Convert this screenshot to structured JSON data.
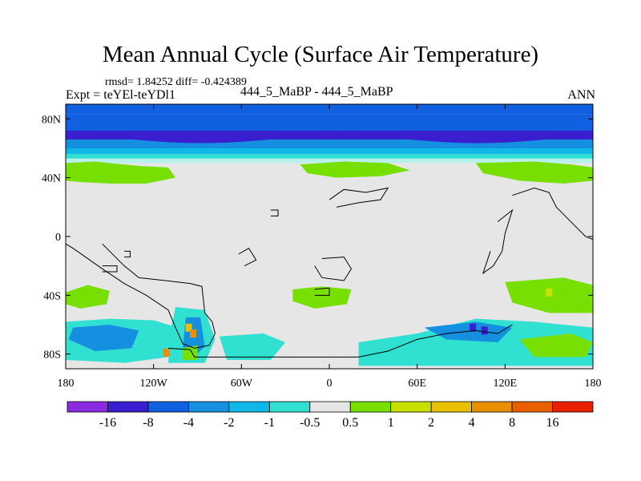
{
  "chart_data": {
    "type": "heatmap",
    "title": "Mean Annual Cycle (Surface Air Temperature)",
    "stats": "rmsd= 1.84252  diff= -0.424389",
    "expt": "Expt = teYEl-teYDl1",
    "case": "444_5_MaBP - 444_5_MaBP",
    "season": "ANN",
    "xlim": [
      -180,
      180
    ],
    "ylim": [
      -90,
      90
    ],
    "x_ticks": [
      {
        "value": -180,
        "label": "180"
      },
      {
        "value": -120,
        "label": "120W"
      },
      {
        "value": -60,
        "label": "60W"
      },
      {
        "value": 0,
        "label": "0"
      },
      {
        "value": 60,
        "label": "60E"
      },
      {
        "value": 120,
        "label": "120E"
      },
      {
        "value": 180,
        "label": "180"
      }
    ],
    "y_ticks": [
      {
        "value": 80,
        "label": "80N"
      },
      {
        "value": 40,
        "label": "40N"
      },
      {
        "value": 0,
        "label": "0"
      },
      {
        "value": -40,
        "label": "40S"
      },
      {
        "value": -80,
        "label": "80S"
      }
    ],
    "colorbar": {
      "labels": [
        "-16",
        "-8",
        "-4",
        "-2",
        "-1",
        "-0.5",
        "0.5",
        "1",
        "2",
        "4",
        "8",
        "16"
      ],
      "colors": [
        "#8a2be2",
        "#3a1fd0",
        "#1060e0",
        "#1590e0",
        "#10b8e8",
        "#30e0d0",
        "#e6e6e6",
        "#78e000",
        "#c8e000",
        "#e8c000",
        "#e89000",
        "#e86000",
        "#e82000"
      ]
    },
    "lat_bands": [
      {
        "lat": [
          90,
          83
        ],
        "color": "#1060e0"
      },
      {
        "lat": [
          83,
          72
        ],
        "color": "#1060e0"
      },
      {
        "lat": [
          72,
          66
        ],
        "color": "#3a1fd0"
      },
      {
        "lat": [
          66,
          60
        ],
        "color": "#1590e0"
      },
      {
        "lat": [
          60,
          56
        ],
        "color": "#10b8e8"
      },
      {
        "lat": [
          56,
          53
        ],
        "color": "#30e0d0"
      },
      {
        "lat": [
          53,
          50
        ],
        "color": "#b8f0ee"
      }
    ],
    "regions": [
      {
        "name": "nh-midlat-west",
        "color": "#78e000",
        "pts": [
          [
            -180,
            50
          ],
          [
            -160,
            51
          ],
          [
            -130,
            48
          ],
          [
            -110,
            47
          ],
          [
            -105,
            40
          ],
          [
            -125,
            36
          ],
          [
            -150,
            36
          ],
          [
            -170,
            37
          ],
          [
            -180,
            38
          ]
        ]
      },
      {
        "name": "nh-midlat-center",
        "color": "#78e000",
        "pts": [
          [
            -20,
            49
          ],
          [
            10,
            51
          ],
          [
            40,
            50
          ],
          [
            55,
            45
          ],
          [
            35,
            41
          ],
          [
            5,
            40
          ],
          [
            -15,
            43
          ]
        ]
      },
      {
        "name": "nh-midlat-east",
        "color": "#78e000",
        "pts": [
          [
            100,
            50
          ],
          [
            140,
            51
          ],
          [
            165,
            49
          ],
          [
            180,
            47
          ],
          [
            180,
            38
          ],
          [
            160,
            36
          ],
          [
            130,
            38
          ],
          [
            105,
            43
          ]
        ]
      },
      {
        "name": "sh-pacific-west",
        "color": "#78e000",
        "pts": [
          [
            -180,
            -38
          ],
          [
            -165,
            -33
          ],
          [
            -150,
            -37
          ],
          [
            -152,
            -46
          ],
          [
            -170,
            -49
          ],
          [
            -180,
            -46
          ]
        ]
      },
      {
        "name": "sh-atlantic",
        "color": "#78e000",
        "pts": [
          [
            -25,
            -36
          ],
          [
            -5,
            -34
          ],
          [
            15,
            -36
          ],
          [
            12,
            -46
          ],
          [
            -10,
            -49
          ],
          [
            -25,
            -44
          ]
        ]
      },
      {
        "name": "sh-indian-east",
        "color": "#78e000",
        "pts": [
          [
            120,
            -31
          ],
          [
            160,
            -28
          ],
          [
            180,
            -33
          ],
          [
            180,
            -52
          ],
          [
            150,
            -52
          ],
          [
            125,
            -45
          ]
        ]
      },
      {
        "name": "sh-south-west",
        "color": "#30e0d0",
        "pts": [
          [
            -180,
            -58
          ],
          [
            -150,
            -56
          ],
          [
            -120,
            -57
          ],
          [
            -100,
            -63
          ],
          [
            -110,
            -82
          ],
          [
            -140,
            -86
          ],
          [
            -180,
            -84
          ]
        ]
      },
      {
        "name": "sh-west-blue",
        "color": "#1590e0",
        "pts": [
          [
            -175,
            -62
          ],
          [
            -150,
            -60
          ],
          [
            -130,
            -64
          ],
          [
            -135,
            -76
          ],
          [
            -160,
            -78
          ],
          [
            -178,
            -70
          ]
        ]
      },
      {
        "name": "sh-andes-cyan",
        "color": "#30e0d0",
        "pts": [
          [
            -105,
            -48
          ],
          [
            -85,
            -50
          ],
          [
            -78,
            -70
          ],
          [
            -85,
            -86
          ],
          [
            -110,
            -86
          ],
          [
            -108,
            -62
          ]
        ]
      },
      {
        "name": "sh-andes-blue",
        "color": "#1590e0",
        "pts": [
          [
            -98,
            -55
          ],
          [
            -88,
            -55
          ],
          [
            -85,
            -75
          ],
          [
            -93,
            -82
          ],
          [
            -100,
            -75
          ]
        ]
      },
      {
        "name": "sh-atl-south",
        "color": "#30e0d0",
        "pts": [
          [
            -75,
            -68
          ],
          [
            -45,
            -66
          ],
          [
            -30,
            -72
          ],
          [
            -40,
            -84
          ],
          [
            -70,
            -84
          ]
        ]
      },
      {
        "name": "sh-east-cyan",
        "color": "#30e0d0",
        "pts": [
          [
            20,
            -72
          ],
          [
            60,
            -66
          ],
          [
            100,
            -56
          ],
          [
            140,
            -58
          ],
          [
            180,
            -62
          ],
          [
            180,
            -88
          ],
          [
            20,
            -88
          ]
        ]
      },
      {
        "name": "sh-east-blue",
        "color": "#1590e0",
        "pts": [
          [
            65,
            -62
          ],
          [
            100,
            -58
          ],
          [
            125,
            -62
          ],
          [
            115,
            -72
          ],
          [
            80,
            -70
          ]
        ]
      },
      {
        "name": "sh-east-green",
        "color": "#78e000",
        "pts": [
          [
            130,
            -70
          ],
          [
            165,
            -66
          ],
          [
            180,
            -72
          ],
          [
            175,
            -82
          ],
          [
            140,
            -82
          ]
        ]
      },
      {
        "name": "sh-ant-peninsula",
        "color": "#78e000",
        "pts": [
          [
            -100,
            -76
          ],
          [
            -90,
            -74
          ],
          [
            -90,
            -84
          ],
          [
            -100,
            -84
          ]
        ]
      }
    ],
    "hotspots": [
      {
        "lon": -96,
        "lat": -62,
        "color": "#e8c000"
      },
      {
        "lon": -93,
        "lat": -66,
        "color": "#e89000"
      },
      {
        "lon": -111,
        "lat": -79,
        "color": "#e89000"
      },
      {
        "lon": 98,
        "lat": -62,
        "color": "#3a1fd0"
      },
      {
        "lon": 106,
        "lat": -64,
        "color": "#3a1fd0"
      },
      {
        "lon": 150,
        "lat": -38,
        "color": "#c8e000"
      }
    ],
    "contours": [
      {
        "name": "south-america",
        "pts": [
          [
            -155,
            -5
          ],
          [
            -150,
            -10
          ],
          [
            -140,
            -20
          ],
          [
            -130,
            -28
          ],
          [
            -112,
            -30
          ],
          [
            -95,
            -32
          ],
          [
            -87,
            -34
          ],
          [
            -85,
            -52
          ],
          [
            -80,
            -58
          ],
          [
            -78,
            -66
          ],
          [
            -82,
            -74
          ],
          [
            -92,
            -76
          ],
          [
            -100,
            -73
          ],
          [
            -105,
            -62
          ],
          [
            -110,
            -50
          ],
          [
            -125,
            -40
          ],
          [
            -140,
            -32
          ],
          [
            -155,
            -22
          ],
          [
            -175,
            -8
          ],
          [
            -180,
            -5
          ]
        ]
      },
      {
        "name": "antarctic-coast-west",
        "pts": [
          [
            -110,
            -76
          ],
          [
            -95,
            -77
          ],
          [
            -92,
            -82
          ],
          [
            -60,
            -82
          ],
          [
            -30,
            -82
          ],
          [
            20,
            -82
          ],
          [
            40,
            -78
          ],
          [
            60,
            -70
          ],
          [
            80,
            -66
          ],
          [
            100,
            -64
          ],
          [
            115,
            -66
          ],
          [
            125,
            -60
          ]
        ]
      },
      {
        "name": "island-south-pacific",
        "pts": [
          [
            -155,
            -20
          ],
          [
            -145,
            -20
          ],
          [
            -145,
            -24
          ],
          [
            -155,
            -24
          ]
        ]
      },
      {
        "name": "north-asia-land",
        "pts": [
          [
            0,
            25
          ],
          [
            10,
            32
          ],
          [
            25,
            30
          ],
          [
            40,
            33
          ],
          [
            35,
            25
          ],
          [
            20,
            23
          ],
          [
            5,
            20
          ]
        ]
      },
      {
        "name": "australia-ish",
        "pts": [
          [
            -5,
            -15
          ],
          [
            10,
            -14
          ],
          [
            15,
            -22
          ],
          [
            10,
            -30
          ],
          [
            -5,
            -28
          ],
          [
            -10,
            -20
          ]
        ]
      },
      {
        "name": "indian-ocean-island",
        "pts": [
          [
            -10,
            -36
          ],
          [
            0,
            -35
          ],
          [
            0,
            -40
          ],
          [
            -10,
            -40
          ]
        ]
      },
      {
        "name": "africa-east",
        "pts": [
          [
            125,
            28
          ],
          [
            140,
            33
          ],
          [
            150,
            30
          ],
          [
            155,
            20
          ],
          [
            165,
            10
          ],
          [
            175,
            0
          ],
          [
            180,
            -2
          ]
        ]
      },
      {
        "name": "east-land",
        "pts": [
          [
            115,
            10
          ],
          [
            125,
            18
          ],
          [
            120,
            2
          ],
          [
            118,
            -10
          ],
          [
            112,
            -20
          ],
          [
            105,
            -25
          ],
          [
            110,
            -10
          ]
        ]
      },
      {
        "name": "small-island-1",
        "pts": [
          [
            -40,
            18
          ],
          [
            -35,
            18
          ],
          [
            -35,
            14
          ],
          [
            -40,
            14
          ]
        ]
      },
      {
        "name": "small-island-2",
        "pts": [
          [
            -140,
            -10
          ],
          [
            -136,
            -10
          ],
          [
            -136,
            -14
          ],
          [
            -140,
            -14
          ]
        ]
      },
      {
        "name": "small-island-3",
        "pts": [
          [
            -62,
            -12
          ],
          [
            -55,
            -8
          ],
          [
            -50,
            -16
          ],
          [
            -58,
            -20
          ]
        ]
      }
    ]
  }
}
